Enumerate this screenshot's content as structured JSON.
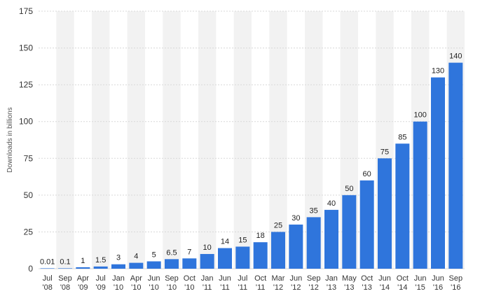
{
  "chart_data": {
    "type": "bar",
    "title": "",
    "xlabel": "",
    "ylabel": "Downloads in billions",
    "ylim": [
      0,
      175
    ],
    "yticks": [
      0,
      25,
      50,
      75,
      100,
      125,
      150,
      175
    ],
    "grid": true,
    "categories": [
      [
        "Jul",
        "'08"
      ],
      [
        "Sep",
        "'08"
      ],
      [
        "Apr",
        "'09"
      ],
      [
        "Jul",
        "'09"
      ],
      [
        "Jan",
        "'10"
      ],
      [
        "Apr",
        "'10"
      ],
      [
        "Jun",
        "'10"
      ],
      [
        "Sep",
        "'10"
      ],
      [
        "Oct",
        "'10"
      ],
      [
        "Jan",
        "'11"
      ],
      [
        "Jun",
        "'11"
      ],
      [
        "Jul",
        "'11"
      ],
      [
        "Oct",
        "'11"
      ],
      [
        "Mar",
        "'12"
      ],
      [
        "Jun",
        "'12"
      ],
      [
        "Sep",
        "'12"
      ],
      [
        "Jan",
        "'13"
      ],
      [
        "May",
        "'13"
      ],
      [
        "Oct",
        "'13"
      ],
      [
        "Jun",
        "'14"
      ],
      [
        "Oct",
        "'14"
      ],
      [
        "Jun",
        "'15"
      ],
      [
        "Jun",
        "'16"
      ],
      [
        "Sep",
        "'16"
      ]
    ],
    "values": [
      0.01,
      0.1,
      1,
      1.5,
      3,
      4,
      5,
      6.5,
      7,
      10,
      14,
      15,
      18,
      25,
      30,
      35,
      40,
      50,
      60,
      75,
      85,
      100,
      130,
      140
    ],
    "labels": [
      "0.01",
      "0.1",
      "1",
      "1.5",
      "3",
      "4",
      "5",
      "6.5",
      "7",
      "10",
      "14",
      "15",
      "18",
      "25",
      "30",
      "35",
      "40",
      "50",
      "60",
      "75",
      "85",
      "100",
      "130",
      "140"
    ],
    "colors": {
      "bar": "#2f75dc",
      "grid": "#d8d8d8",
      "band": "#f2f2f2"
    }
  }
}
